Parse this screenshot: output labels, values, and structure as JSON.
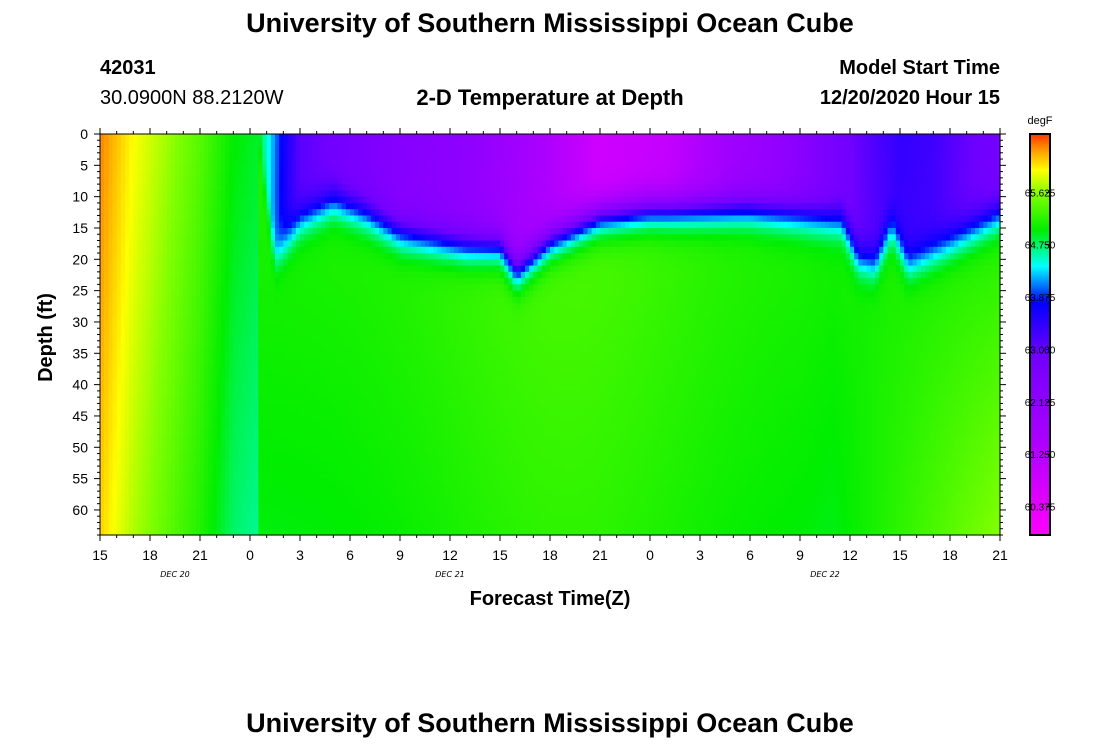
{
  "header": {
    "title": "University of Southern Mississippi Ocean Cube",
    "station_id": "42031",
    "coordinates": "30.0900N 88.2120W",
    "plot_title": "2-D Temperature at Depth",
    "model_start_label": "Model Start Time",
    "model_start_value": "12/20/2020 Hour 15"
  },
  "footer": {
    "title": "University of Southern Mississippi Ocean Cube"
  },
  "colors": {
    "background": "#ffffff",
    "axis": "#000000"
  },
  "chart_data": {
    "type": "heatmap",
    "title": "2-D Temperature at Depth",
    "xlabel": "Forecast Time(Z)",
    "ylabel": "Depth (ft)",
    "x_unit": "hours since 12/20/2020 15Z",
    "xlim": [
      0,
      54
    ],
    "ylim": [
      0,
      64
    ],
    "x_tick_labels": [
      "15",
      "18",
      "21",
      "0",
      "3",
      "6",
      "9",
      "12",
      "15",
      "18",
      "21",
      "0",
      "3",
      "6",
      "9",
      "12",
      "15",
      "18",
      "21"
    ],
    "date_labels": [
      {
        "text": "DEC 20",
        "hour": 4.5
      },
      {
        "text": "DEC 21",
        "hour": 21
      },
      {
        "text": "DEC 22",
        "hour": 43.5
      }
    ],
    "y_tick_labels": [
      "0",
      "5",
      "10",
      "15",
      "20",
      "25",
      "30",
      "35",
      "40",
      "45",
      "50",
      "55",
      "60"
    ],
    "colorbar": {
      "unit": "degF",
      "min": 59.9,
      "max": 66.6,
      "tick_labels": [
        "65.625",
        "64.750",
        "63.875",
        "63.000",
        "62.125",
        "61.250",
        "60.375"
      ]
    },
    "series": [
      {
        "name": "near-surface temperature (degF)",
        "hours": [
          0,
          2,
          4,
          6,
          8,
          9.5,
          11,
          12,
          18,
          22,
          26,
          30,
          34,
          36,
          38,
          40,
          42,
          44,
          46,
          48,
          50,
          52,
          54
        ],
        "values": [
          66.4,
          66.0,
          65.7,
          65.4,
          65.0,
          64.9,
          63.7,
          63.1,
          62.4,
          62.2,
          61.6,
          60.8,
          61.0,
          61.4,
          61.8,
          62.0,
          62.3,
          62.7,
          63.1,
          63.4,
          63.3,
          63.0,
          62.8
        ]
      },
      {
        "name": "thermocline depth (ft)",
        "hours": [
          9.5,
          10.5,
          12,
          14,
          16,
          18,
          20,
          22,
          24,
          25,
          27,
          30,
          33,
          36,
          39,
          42,
          44.5,
          45.5,
          46.5,
          47.5,
          48.5,
          50,
          52,
          54
        ],
        "values": [
          0,
          20,
          14,
          11,
          13,
          16,
          17,
          18,
          18,
          22,
          17,
          13,
          12,
          12,
          12,
          13,
          14,
          20,
          21,
          15,
          21,
          19,
          16,
          13
        ]
      }
    ]
  }
}
